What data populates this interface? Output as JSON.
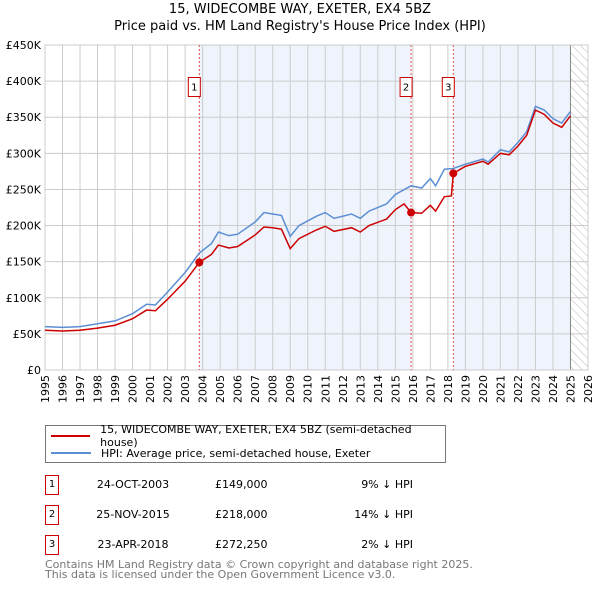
{
  "chart_data": {
    "type": "line",
    "title": "15, WIDECOMBE WAY, EXETER, EX4 5BZ",
    "subtitle": "Price paid vs. HM Land Registry's House Price Index (HPI)",
    "xlim": [
      1995,
      2026
    ],
    "ylim": [
      0,
      450000
    ],
    "x_ticks": [
      "1995",
      "1996",
      "1997",
      "1998",
      "1999",
      "2000",
      "2001",
      "2002",
      "2003",
      "2004",
      "2005",
      "2006",
      "2007",
      "2008",
      "2009",
      "2010",
      "2011",
      "2012",
      "2013",
      "2014",
      "2015",
      "2016",
      "2017",
      "2018",
      "2019",
      "2020",
      "2021",
      "2022",
      "2023",
      "2024",
      "2025",
      "2026"
    ],
    "y_ticks": [
      "£0",
      "£50K",
      "£100K",
      "£150K",
      "£200K",
      "£250K",
      "£300K",
      "£350K",
      "£400K",
      "£450K"
    ],
    "grid": true,
    "series": [
      {
        "name": "15, WIDECOMBE WAY, EXETER, EX4 5BZ (semi-detached house)",
        "color": "#cc0000",
        "x": [
          1995,
          1996,
          1997,
          1998,
          1999,
          2000,
          2000.8,
          2001.3,
          2002,
          2003,
          2003.81,
          2004.5,
          2004.9,
          2005.5,
          2006,
          2007,
          2007.5,
          2008,
          2008.5,
          2009,
          2009.5,
          2010.5,
          2011,
          2011.5,
          2012.5,
          2013,
          2013.5,
          2014.5,
          2015,
          2015.5,
          2015.9,
          2016.5,
          2017,
          2017.3,
          2017.8,
          2018.2,
          2018.31,
          2019,
          2020,
          2020.3,
          2021,
          2021.5,
          2022,
          2022.5,
          2023,
          2023.5,
          2024,
          2024.5,
          2025
        ],
        "y": [
          55000,
          54000,
          55000,
          58000,
          62000,
          71000,
          83000,
          82000,
          98000,
          123000,
          149000,
          160000,
          173000,
          169000,
          171000,
          187000,
          198000,
          197000,
          195000,
          168000,
          182000,
          194000,
          199000,
          192000,
          197000,
          191000,
          200000,
          209000,
          222000,
          230000,
          218000,
          217000,
          228000,
          220000,
          240000,
          241000,
          272250,
          282000,
          289000,
          285000,
          300000,
          298000,
          310000,
          325000,
          360000,
          354000,
          342000,
          336000,
          352000
        ]
      },
      {
        "name": "HPI: Average price, semi-detached house, Exeter",
        "color": "#5b8fd4",
        "x": [
          1995,
          1996,
          1997,
          1998,
          1999,
          2000,
          2000.8,
          2001.3,
          2002,
          2003,
          2003.81,
          2004.5,
          2004.9,
          2005.5,
          2006,
          2007,
          2007.5,
          2008,
          2008.5,
          2009,
          2009.5,
          2010.5,
          2011,
          2011.5,
          2012.5,
          2013,
          2013.5,
          2014.5,
          2015,
          2015.9,
          2016.5,
          2017,
          2017.3,
          2017.8,
          2018.31,
          2019,
          2020,
          2020.3,
          2021,
          2021.5,
          2022,
          2022.5,
          2023,
          2023.5,
          2024,
          2024.5,
          2025
        ],
        "y": [
          60000,
          59000,
          60000,
          64000,
          68000,
          78000,
          91000,
          90000,
          108000,
          135000,
          162000,
          175000,
          191000,
          186000,
          188000,
          205000,
          218000,
          216000,
          214000,
          185000,
          200000,
          213000,
          218000,
          210000,
          216000,
          210000,
          220000,
          230000,
          243000,
          255000,
          252000,
          265000,
          255000,
          278000,
          279000,
          285000,
          292000,
          288000,
          305000,
          302000,
          315000,
          330000,
          365000,
          360000,
          348000,
          342000,
          358000
        ]
      }
    ],
    "sales": [
      {
        "label": "1",
        "x": 2003.81,
        "date": "24-OCT-2003",
        "price": 149000,
        "price_text": "£149,000",
        "hpi": "9% ↓ HPI"
      },
      {
        "label": "2",
        "x": 2015.9,
        "date": "25-NOV-2015",
        "price": 218000,
        "price_text": "£218,000",
        "hpi": "14% ↓ HPI"
      },
      {
        "label": "3",
        "x": 2018.31,
        "date": "23-APR-2018",
        "price": 272250,
        "price_text": "£272,250",
        "hpi": "2% ↓ HPI"
      }
    ],
    "forecast_start": 2025.0,
    "legend_position": "below"
  },
  "footer": {
    "line1": "Contains HM Land Registry data © Crown copyright and database right 2025.",
    "line2": "This data is licensed under the Open Government Licence v3.0."
  }
}
